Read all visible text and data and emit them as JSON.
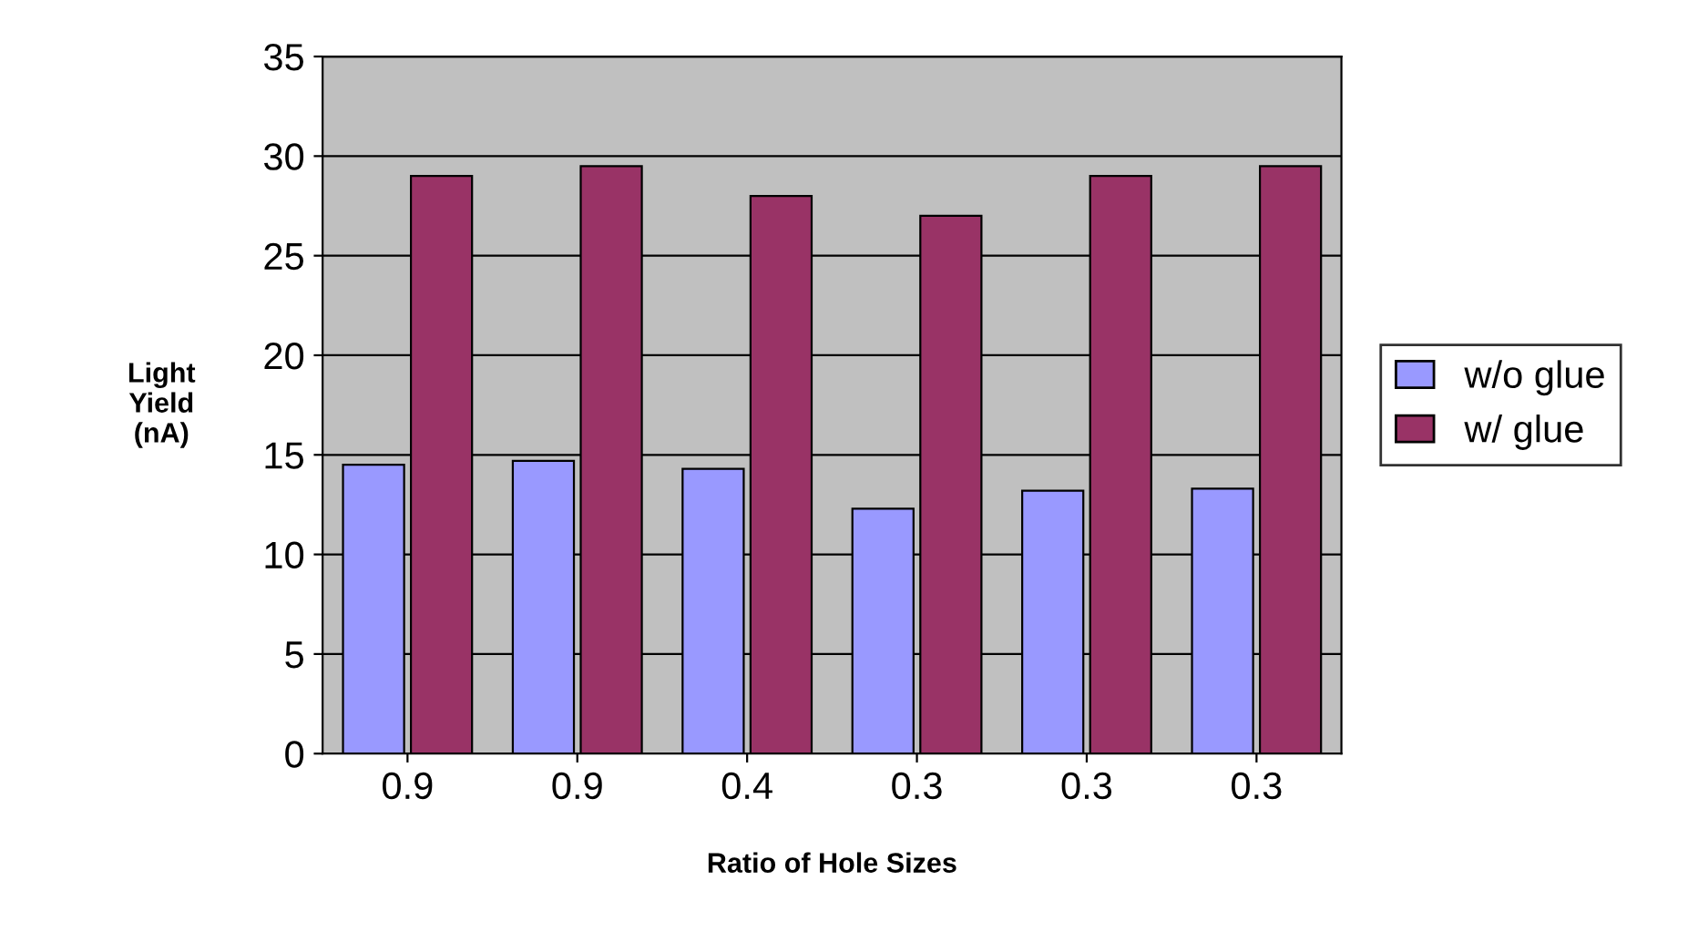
{
  "chart_data": {
    "type": "bar",
    "xlabel": "Ratio of Hole Sizes",
    "ylabel": "Light\nYield\n(nA)",
    "categories": [
      "0.9",
      "0.9",
      "0.4",
      "0.3",
      "0.3",
      "0.3"
    ],
    "series": [
      {
        "name": "w/o glue",
        "color": "#9999ff",
        "values": [
          14.5,
          14.7,
          14.3,
          12.3,
          13.2,
          13.3
        ]
      },
      {
        "name": "w/ glue",
        "color": "#993366",
        "values": [
          29,
          29.5,
          28,
          27,
          29,
          29.5
        ]
      }
    ],
    "ylim": [
      0,
      35
    ],
    "yticks": [
      0,
      5,
      10,
      15,
      20,
      25,
      30,
      35
    ],
    "grid": "y",
    "legend": "right"
  }
}
